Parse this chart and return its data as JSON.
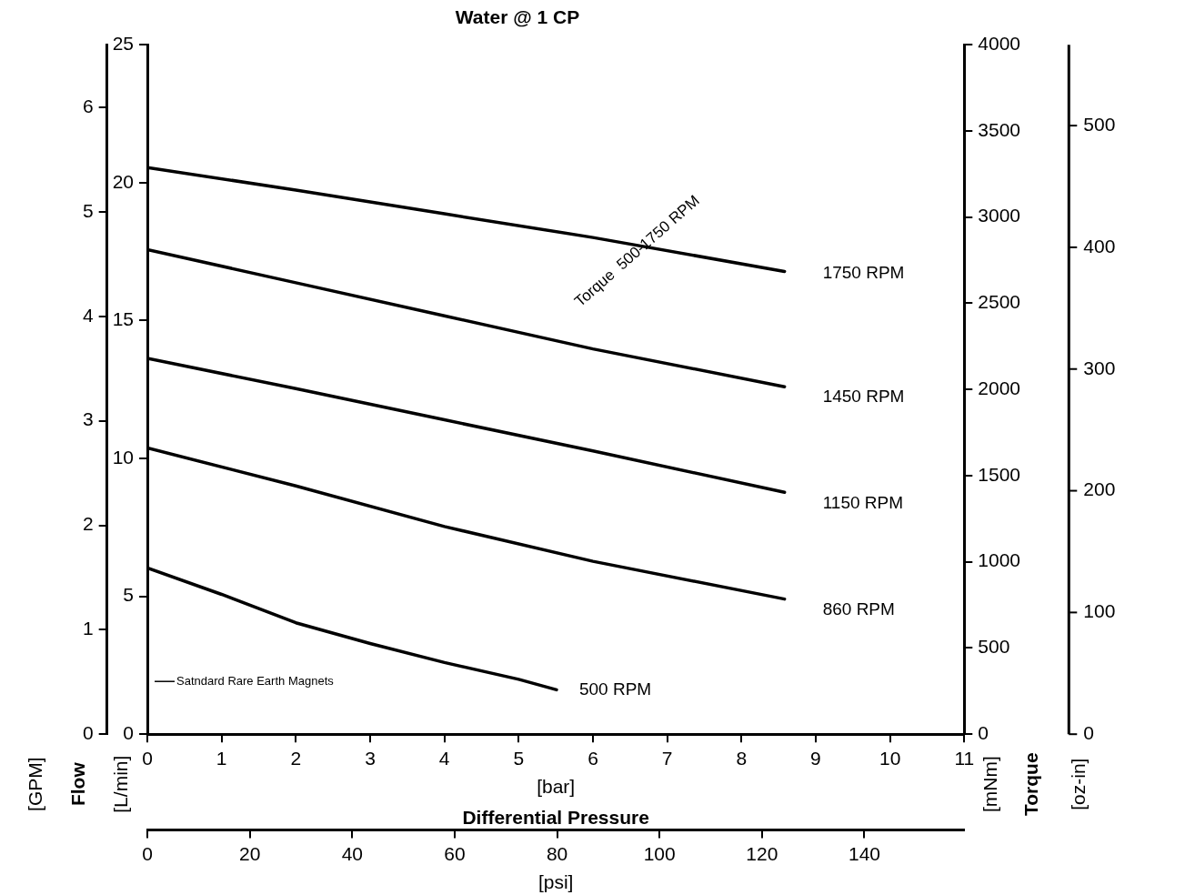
{
  "chart_data": {
    "type": "line",
    "title": "Water @ 1 CP",
    "xlabel": "[bar]",
    "x2label": "[psi]",
    "ylabel": "[L/min]",
    "y2label": "[mNm]",
    "y3label": "[GPM]",
    "xlim": [
      0,
      11
    ],
    "xticks": [
      0,
      1,
      2,
      3,
      4,
      5,
      6,
      7,
      8,
      9,
      10,
      11
    ],
    "x2lim": [
      0,
      159.5
    ],
    "x2ticks": [
      0,
      20,
      40,
      60,
      80,
      100,
      120,
      140
    ],
    "ylim": [
      0,
      25
    ],
    "yticks": [
      0,
      5,
      10,
      15,
      20,
      25
    ],
    "y2lim": [
      0,
      4000
    ],
    "y2ticks": [
      0,
      500,
      1000,
      1500,
      2000,
      2500,
      3000,
      3500,
      4000
    ],
    "y3lim": [
      0,
      6.6
    ],
    "y3ticks": [
      0,
      1,
      2,
      3,
      4,
      5,
      6
    ],
    "grid": false,
    "legend": false,
    "marker": "none",
    "line_style": "solid",
    "series": [
      {
        "name": "1750 RPM",
        "color": "#000000",
        "x": [
          0,
          2,
          4,
          6,
          8.58
        ],
        "values": [
          20.55,
          19.73,
          18.87,
          18.01,
          16.78
        ]
      },
      {
        "name": "1450 RPM",
        "color": "#000000",
        "x": [
          0,
          2,
          4,
          6,
          8.58
        ],
        "values": [
          17.57,
          16.37,
          15.17,
          13.97,
          12.6
        ]
      },
      {
        "name": "1150 RPM",
        "color": "#000000",
        "x": [
          0,
          2,
          4,
          6,
          8.58
        ],
        "values": [
          13.63,
          12.53,
          11.4,
          10.27,
          8.77
        ]
      },
      {
        "name": "860 RPM",
        "color": "#000000",
        "x": [
          0,
          2,
          4,
          6,
          8.58
        ],
        "values": [
          10.38,
          9.0,
          7.53,
          6.27,
          4.9
        ]
      },
      {
        "name": "500 RPM",
        "color": "#000000",
        "x": [
          0,
          1,
          2,
          3,
          4,
          5,
          5.51
        ],
        "values": [
          6.03,
          5.07,
          4.04,
          3.29,
          2.6,
          1.99,
          1.61
        ]
      }
    ],
    "annotations": [
      "Flow",
      "Torque",
      "Differential Pressure",
      "Satndard Rare Earth Magnets",
      "Torque  500-1750 RPM",
      "[oz-in]",
      "0",
      "100",
      "200",
      "300",
      "400",
      "500"
    ]
  }
}
